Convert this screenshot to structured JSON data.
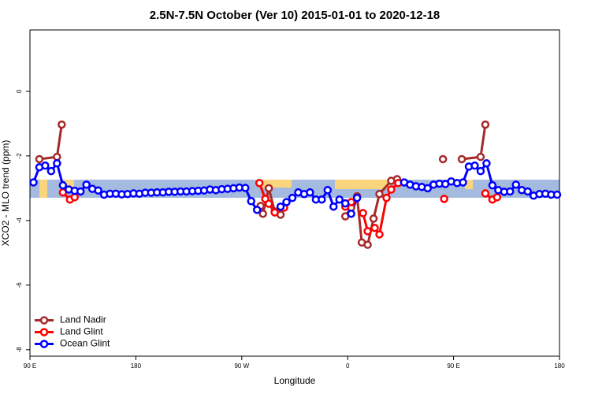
{
  "chart_data": {
    "type": "line",
    "title": "2.5N-7.5N October (Ver 10)   2015-01-01 to 2020-12-18",
    "xlabel": "Longitude",
    "ylabel": "XCO2 - MLO trend (ppm)",
    "xlim": [
      90,
      540
    ],
    "ylim": [
      -8.2,
      1.9
    ],
    "xticks": [
      {
        "value": 90,
        "label": "90 E"
      },
      180,
      {
        "value": 270,
        "label": "90 W"
      },
      {
        "value": 360,
        "label": "0"
      },
      {
        "value": 450,
        "label": "90 E"
      },
      {
        "value": 540,
        "label": "180"
      }
    ],
    "yticks": [
      -8,
      -6,
      -4,
      -2,
      0
    ],
    "legend": "bottom-left",
    "series": [
      {
        "name": "Land Nadir",
        "color": "#a52a2a",
        "x": [
          98,
          113,
          117,
          123,
          286,
          288,
          293,
          298,
          303,
          308,
          358,
          363,
          368,
          372,
          377,
          382,
          387,
          397,
          402,
          407,
          441,
          446,
          457,
          473,
          477
        ],
        "values": [
          -2.1,
          -2.03,
          -1.03,
          null,
          -3.55,
          -3.79,
          -3.0,
          -3.72,
          -3.82,
          null,
          -3.87,
          -3.6,
          -3.25,
          -4.68,
          -4.75,
          -3.94,
          -3.18,
          -2.77,
          -2.72,
          null,
          -2.1,
          null,
          -2.1,
          -2.03,
          -1.03
        ]
      },
      {
        "name": "Land Glint",
        "color": "#ff0000",
        "x": [
          118,
          124,
          128,
          133,
          285,
          290,
          293,
          298,
          306,
          310,
          358,
          363,
          368,
          373,
          377,
          383,
          387,
          393,
          397,
          403,
          408,
          442,
          446,
          477,
          483,
          487
        ],
        "values": [
          -3.13,
          -3.35,
          -3.28,
          null,
          -2.84,
          -3.33,
          -3.48,
          -3.75,
          -3.6,
          null,
          -3.57,
          -3.43,
          null,
          -3.77,
          -4.33,
          -4.23,
          -4.43,
          -3.3,
          -3.04,
          -2.84,
          null,
          -3.33,
          null,
          -3.16,
          -3.35,
          -3.28
        ]
      },
      {
        "name": "Ocean Glint",
        "color": "#0000ff",
        "x": [
          93,
          98,
          103,
          108,
          113,
          118,
          123,
          128,
          133,
          138,
          143,
          148,
          153,
          158,
          163,
          168,
          173,
          178,
          183,
          188,
          193,
          198,
          203,
          208,
          213,
          218,
          223,
          228,
          233,
          238,
          243,
          248,
          253,
          258,
          263,
          268,
          273,
          278,
          283,
          288,
          293,
          298,
          303,
          308,
          313,
          318,
          323,
          328,
          333,
          338,
          343,
          348,
          353,
          358,
          363,
          368,
          373,
          378,
          383,
          388,
          393,
          398,
          403,
          408,
          413,
          418,
          423,
          428,
          433,
          438,
          443,
          448,
          453,
          458,
          463,
          468,
          473,
          478,
          483,
          488,
          493,
          498,
          503,
          508,
          513,
          518,
          523,
          528,
          533,
          538
        ],
        "values": [
          -2.82,
          -2.35,
          -2.3,
          -2.47,
          -2.23,
          -2.91,
          -3.04,
          -3.08,
          -3.1,
          -2.89,
          -3.02,
          -3.07,
          -3.2,
          -3.17,
          -3.17,
          -3.19,
          -3.18,
          -3.16,
          -3.17,
          -3.14,
          -3.14,
          -3.13,
          -3.13,
          -3.11,
          -3.11,
          -3.1,
          -3.1,
          -3.09,
          -3.08,
          -3.07,
          -3.04,
          -3.06,
          -3.03,
          -3.02,
          -3.0,
          -2.98,
          -2.99,
          -3.4,
          -3.67,
          null,
          null,
          null,
          -3.57,
          -3.43,
          -3.3,
          -3.13,
          -3.18,
          -3.13,
          -3.35,
          -3.35,
          -3.06,
          -3.57,
          -3.35,
          -3.47,
          -3.79,
          -3.3,
          null,
          null,
          null,
          null,
          null,
          null,
          null,
          -2.82,
          -2.89,
          -2.94,
          -2.96,
          -3.0,
          -2.89,
          -2.86,
          -2.87,
          -2.79,
          -2.84,
          -2.82,
          -2.33,
          -2.3,
          -2.47,
          -2.23,
          -2.91,
          -3.06,
          -3.11,
          -3.1,
          -2.89,
          -3.06,
          -3.1,
          -3.23,
          -3.18,
          -3.17,
          -3.2,
          -3.2
        ]
      }
    ]
  }
}
